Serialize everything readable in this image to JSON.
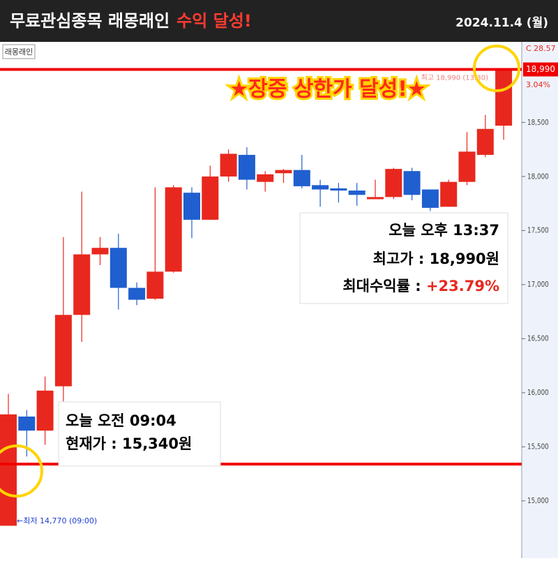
{
  "chart_data": {
    "type": "candlestick",
    "title": "무료관심종목 래몽래인",
    "title_highlight": "수익 달성!",
    "date": "2024.11.4 (월)",
    "ticker": "래몽래인",
    "banner": "★장중 상한가 달성!★",
    "ylim": [
      14470,
      19245
    ],
    "yticks": [
      {
        "value": 15000,
        "label": "15,000"
      },
      {
        "value": 15500,
        "label": "15,500"
      },
      {
        "value": 16000,
        "label": "16,000"
      },
      {
        "value": 16500,
        "label": "16,500"
      },
      {
        "value": 17000,
        "label": "17,000"
      },
      {
        "value": 17500,
        "label": "17,500"
      },
      {
        "value": 18000,
        "label": "18,000"
      },
      {
        "value": 18500,
        "label": "18,500"
      }
    ],
    "up_color": "#e8281e",
    "down_color": "#1f5fcf",
    "open": [
      14770,
      15780,
      15650,
      16060,
      16720,
      17280,
      17340,
      16970,
      16870,
      17120,
      17850,
      17600,
      18000,
      18200,
      17950,
      18030,
      18060,
      17920,
      17890,
      17870,
      17790,
      17810,
      18050,
      17880,
      17720,
      17950,
      18200,
      18470
    ],
    "high": [
      15990,
      15840,
      16150,
      17440,
      17860,
      17440,
      17470,
      17020,
      17900,
      17920,
      17900,
      18100,
      18250,
      18270,
      18050,
      18070,
      18200,
      17970,
      17940,
      17940,
      17970,
      18080,
      18080,
      17880,
      17970,
      18410,
      18570,
      18990
    ],
    "low": [
      14770,
      15410,
      15520,
      15920,
      16470,
      17180,
      16770,
      16810,
      16860,
      17110,
      17430,
      17600,
      17950,
      17880,
      17860,
      17940,
      17890,
      17720,
      17760,
      17730,
      17790,
      17790,
      17780,
      17680,
      17720,
      17920,
      18180,
      18340
    ],
    "close": [
      15800,
      15650,
      16020,
      16720,
      17280,
      17340,
      16970,
      16860,
      17120,
      17900,
      17600,
      18000,
      18210,
      17970,
      18020,
      18060,
      17910,
      17880,
      17870,
      17830,
      17810,
      18070,
      17830,
      17710,
      17950,
      18230,
      18440,
      18990
    ],
    "hlines": [
      {
        "value": 18990,
        "color": "#f00000"
      },
      {
        "value": 15340,
        "color": "#f00000"
      }
    ],
    "price_label": {
      "value": 18990,
      "label": "18,990"
    },
    "axis_notes": [
      "C 28.57",
      "3.04%"
    ],
    "high_note": "최고 18,990 (13:30)",
    "low_note": "←최저 14,770 (09:00)",
    "boxes": [
      {
        "lines": [
          "오늘 오전 09:04",
          "현재가 : 15,340원"
        ]
      },
      {
        "lines": [
          "오늘 오후 13:37",
          "최고가 : 18,990원"
        ],
        "rate_label": "최대수익률 : ",
        "rate": "+23.79%"
      }
    ]
  }
}
